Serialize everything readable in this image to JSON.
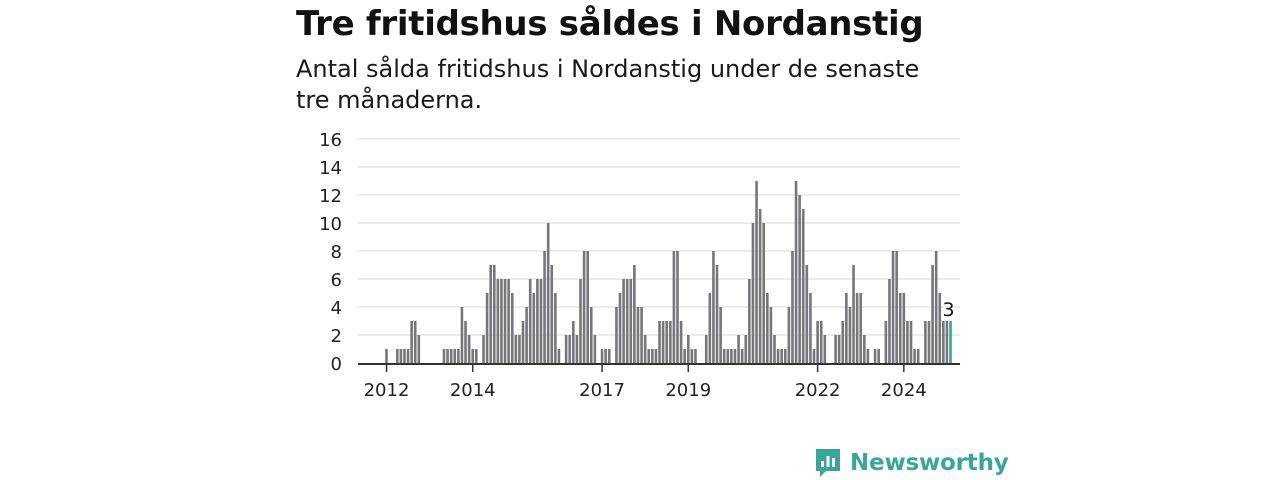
{
  "title": "Tre fritidshus såldes i Nordanstig",
  "subtitle": "Antal sålda fritidshus i Nordanstig under de senaste tre månaderna.",
  "brand": {
    "name": "Newsworthy",
    "color": "#3aa59c",
    "icon": "newsworthy-logo-icon"
  },
  "chart_data": {
    "type": "bar",
    "title": "Tre fritidshus såldes i Nordanstig",
    "subtitle": "Antal sålda fritidshus i Nordanstig under de senaste tre månaderna.",
    "xlabel": "",
    "ylabel": "",
    "ylim": [
      0,
      16
    ],
    "yticks": [
      "0",
      "2",
      "4",
      "6",
      "8",
      "10",
      "12",
      "14",
      "16"
    ],
    "xticks": [
      "2012",
      "2014",
      "2017",
      "2019",
      "2022",
      "2024"
    ],
    "grid": true,
    "bar_color": "#76767c",
    "highlight_color": "#3aa59c",
    "highlight_label": "3",
    "values": [
      1,
      0,
      0,
      1,
      1,
      1,
      1,
      3,
      3,
      2,
      0,
      0,
      0,
      0,
      0,
      0,
      1,
      1,
      1,
      1,
      1,
      4,
      3,
      2,
      1,
      1,
      0,
      2,
      5,
      7,
      7,
      6,
      6,
      6,
      6,
      5,
      2,
      2,
      3,
      4,
      6,
      5,
      6,
      6,
      8,
      10,
      7,
      5,
      1,
      0,
      2,
      2,
      3,
      2,
      6,
      8,
      8,
      4,
      2,
      0,
      1,
      1,
      1,
      0,
      4,
      5,
      6,
      6,
      6,
      7,
      4,
      4,
      2,
      1,
      1,
      1,
      3,
      3,
      3,
      3,
      8,
      8,
      3,
      1,
      2,
      1,
      1,
      0,
      0,
      2,
      5,
      8,
      7,
      4,
      1,
      1,
      1,
      1,
      2,
      1,
      2,
      6,
      10,
      13,
      11,
      10,
      5,
      4,
      2,
      1,
      1,
      1,
      4,
      8,
      13,
      12,
      11,
      7,
      5,
      1,
      3,
      3,
      2,
      0,
      0,
      2,
      2,
      3,
      5,
      4,
      7,
      5,
      5,
      2,
      1,
      0,
      1,
      1,
      0,
      3,
      6,
      8,
      8,
      5,
      5,
      3,
      3,
      1,
      1,
      0,
      3,
      3,
      7,
      8,
      5,
      3,
      3,
      3
    ]
  }
}
